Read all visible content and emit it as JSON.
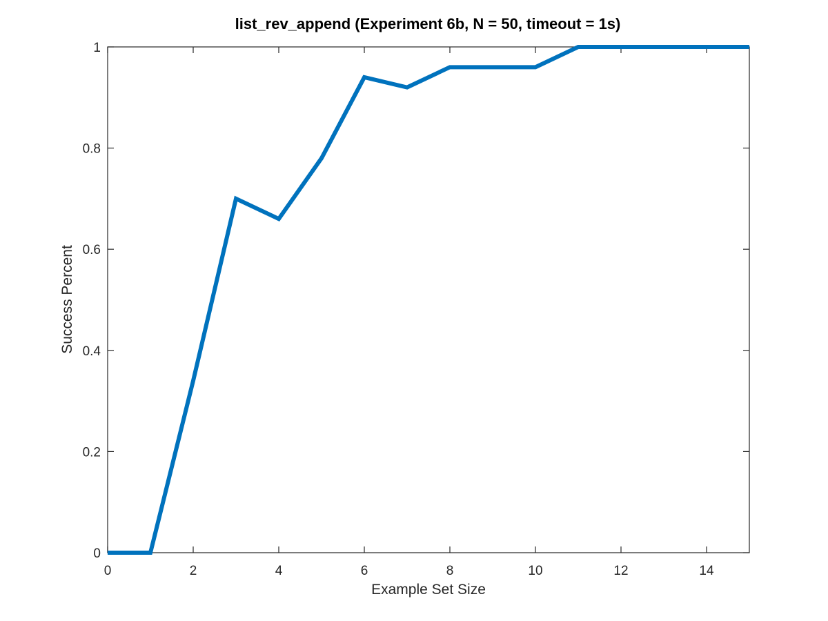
{
  "chart_data": {
    "type": "line",
    "title": "list_rev_append (Experiment 6b, N = 50, timeout = 1s)",
    "xlabel": "Example Set Size",
    "ylabel": "Success Percent",
    "xlim": [
      0,
      15
    ],
    "ylim": [
      0,
      1
    ],
    "xticks": [
      0,
      2,
      4,
      6,
      8,
      10,
      12,
      14
    ],
    "yticks": [
      0,
      0.2,
      0.4,
      0.6,
      0.8,
      1
    ],
    "xtick_labels": [
      "0",
      "2",
      "4",
      "6",
      "8",
      "10",
      "12",
      "14"
    ],
    "ytick_labels": [
      "0",
      "0.2",
      "0.4",
      "0.6",
      "0.8",
      "1"
    ],
    "grid": false,
    "legend": "none",
    "series": [
      {
        "color": "#0072bd",
        "x": [
          0,
          1,
          2,
          3,
          4,
          5,
          6,
          7,
          8,
          9,
          10,
          11,
          12,
          13,
          14,
          15
        ],
        "y": [
          0,
          0,
          0.34,
          0.7,
          0.66,
          0.78,
          0.94,
          0.92,
          0.96,
          0.96,
          0.96,
          1,
          1,
          1,
          1,
          1
        ]
      }
    ]
  }
}
